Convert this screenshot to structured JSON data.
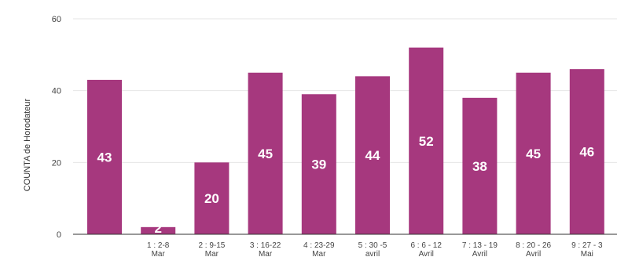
{
  "chart_data": {
    "type": "bar",
    "ylabel": "COUNTA de Horodateur",
    "xlabel": "",
    "title": "",
    "ylim": [
      0,
      60
    ],
    "yticks": [
      0,
      20,
      40,
      60
    ],
    "grid": true,
    "bar_color": "#a6387e",
    "categories": [
      "",
      "1 : 2-8 Mar",
      "2 : 9-15 Mar",
      "3 : 16-22 Mar",
      "4 : 23-29 Mar",
      "5 : 30 -5 avril",
      "6 : 6 - 12 Avril",
      "7 : 13 - 19 Avril",
      "8 : 20 - 26 Avril",
      "9 : 27 - 3 Mai"
    ],
    "values": [
      43,
      2,
      20,
      45,
      39,
      44,
      52,
      38,
      45,
      46
    ],
    "data_labels": [
      "43",
      "2",
      "20",
      "45",
      "39",
      "44",
      "52",
      "38",
      "45",
      "46"
    ]
  }
}
